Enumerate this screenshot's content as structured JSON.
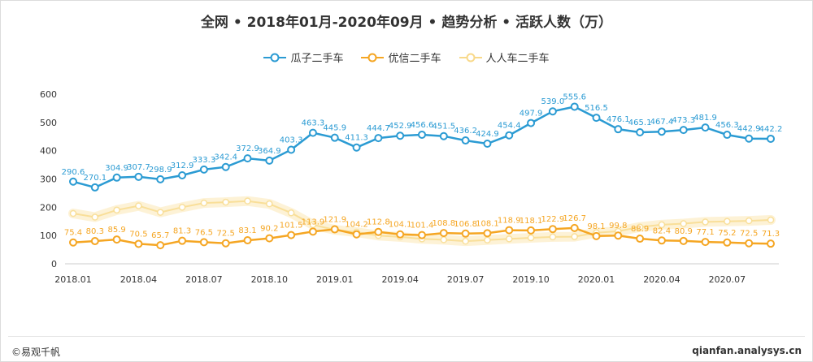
{
  "title": "全网 • 2018年01月-2020年09月 • 趋势分析 • 活跃人数（万）",
  "footer": {
    "source": "©易观千帆",
    "site": "qianfan.analysys.cn"
  },
  "colors": {
    "guazi": "#2b9bd3",
    "youxin": "#f5a623",
    "renren": "#f8d98a"
  },
  "chart_data": {
    "type": "line",
    "x": [
      "2018.01",
      "2018.02",
      "2018.03",
      "2018.04",
      "2018.05",
      "2018.06",
      "2018.07",
      "2018.08",
      "2018.09",
      "2018.10",
      "2018.11",
      "2018.12",
      "2019.01",
      "2019.02",
      "2019.03",
      "2019.04",
      "2019.05",
      "2019.06",
      "2019.07",
      "2019.08",
      "2019.09",
      "2019.10",
      "2019.11",
      "2019.12",
      "2020.01",
      "2020.02",
      "2020.03",
      "2020.04",
      "2020.05",
      "2020.06",
      "2020.07",
      "2020.08",
      "2020.09"
    ],
    "x_tick_labels": [
      "2018.01",
      "2018.04",
      "2018.07",
      "2018.10",
      "2019.01",
      "2019.04",
      "2019.07",
      "2019.10",
      "2020.01",
      "2020.04",
      "2020.07"
    ],
    "ylim": [
      0,
      600
    ],
    "y_ticks": [
      0,
      100,
      200,
      300,
      400,
      500,
      600
    ],
    "grid": false,
    "legend_position": "top-center",
    "series": [
      {
        "name": "瓜子二手车",
        "values": [
          290.6,
          270.1,
          304.9,
          307.7,
          298.9,
          312.9,
          333.3,
          342.4,
          372.9,
          364.9,
          403.3,
          463.3,
          445.9,
          411.3,
          444.7,
          452.9,
          456.6,
          451.5,
          436.2,
          424.9,
          454.4,
          497.9,
          539.0,
          555.6,
          516.5,
          476.1,
          465.1,
          467.4,
          473.3,
          481.9,
          456.3,
          442.9,
          442.2
        ],
        "labels": [
          "290.6",
          "270.1",
          "304.9",
          "307.7",
          "298.9",
          "312.9",
          "333.3",
          "342.4",
          "372.9",
          "364.9",
          "403.3",
          "463.3",
          "445.9",
          "411.3",
          "444.7",
          "452.9",
          "456.6",
          "451.5",
          "436.2",
          "424.9",
          "454.4",
          "497.9",
          "539.0",
          "555.6",
          "516.5",
          "476.1",
          "465.1",
          "467.4",
          "473.3",
          "481.9",
          "456.3",
          "442.9",
          "442.2"
        ]
      },
      {
        "name": "优信二手车",
        "values": [
          75.4,
          80.3,
          85.9,
          70.5,
          65.7,
          81.3,
          76.5,
          72.5,
          83.1,
          90.2,
          101.5,
          113.9,
          121.9,
          104.2,
          112.8,
          104.1,
          101.4,
          108.8,
          106.8,
          108.1,
          118.9,
          118.1,
          122.9,
          126.7,
          98.1,
          99.8,
          88.9,
          82.4,
          80.9,
          77.1,
          75.2,
          72.5,
          71.3
        ],
        "labels": [
          "75.4",
          "80.3",
          "85.9",
          "70.5",
          "65.7",
          "81.3",
          "76.5",
          "72.5",
          "83.1",
          "90.2",
          "101.5",
          "113.9",
          "121.9",
          "104.2",
          "112.8",
          "104.1",
          "101.4",
          "108.8",
          "106.8",
          "108.1",
          "118.9",
          "118.1",
          "122.9",
          "126.7",
          "98.1",
          "99.8",
          "88.9",
          "82.4",
          "80.9",
          "77.1",
          "75.2",
          "72.5",
          "71.3"
        ]
      },
      {
        "name": "人人车二手车",
        "values": [
          178,
          165,
          190,
          205,
          182,
          200,
          215,
          218,
          222,
          212,
          180,
          138,
          120,
          112,
          100,
          95,
          88,
          85,
          80,
          84,
          88,
          92,
          95,
          96,
          110,
          115,
          130,
          138,
          142,
          148,
          150,
          152,
          155
        ],
        "labels": []
      }
    ]
  }
}
